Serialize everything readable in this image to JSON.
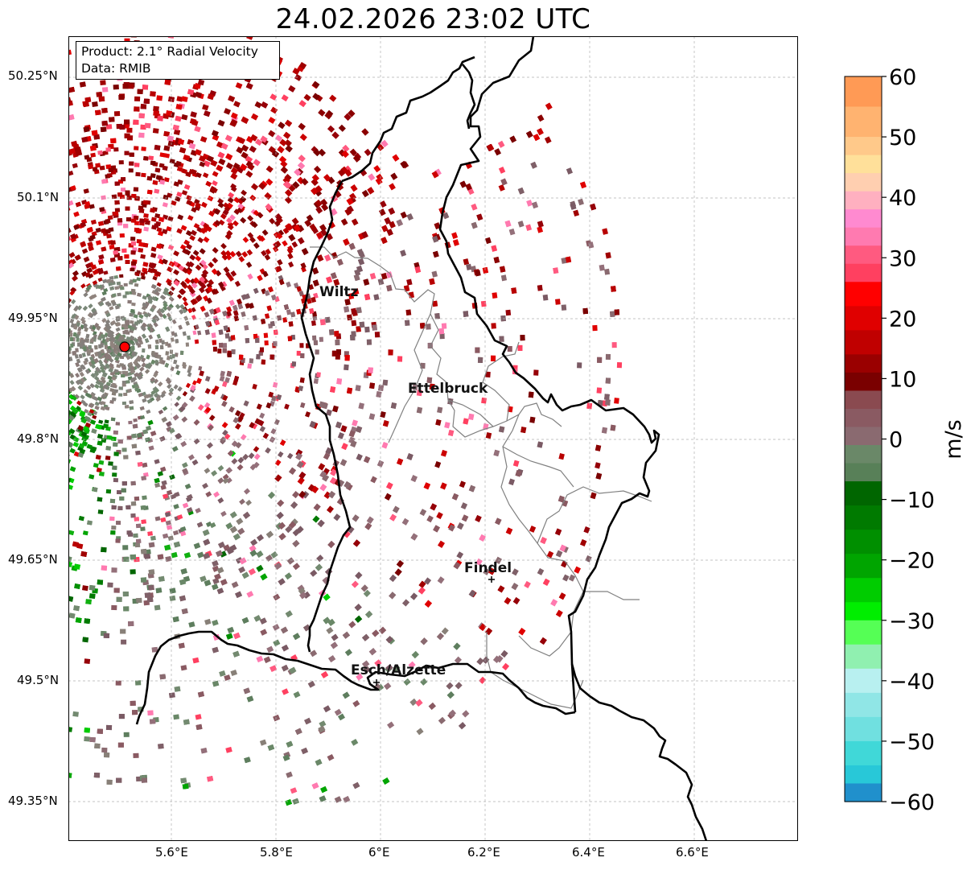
{
  "title": "24.02.2026 23:02 UTC",
  "info": {
    "product": "Product: 2.1° Radial Velocity",
    "data": "Data: RMIB"
  },
  "axes": {
    "lat_labels": [
      "50.25°N",
      "50.1°N",
      "49.95°N",
      "49.8°N",
      "49.65°N",
      "49.5°N",
      "49.35°N"
    ],
    "lon_labels": [
      "5.6°E",
      "5.8°E",
      "6°E",
      "6.2°E",
      "6.4°E",
      "6.6°E"
    ]
  },
  "cities": [
    {
      "name": "Wiltz"
    },
    {
      "name": "Ettelbruck"
    },
    {
      "name": "Findel"
    },
    {
      "name": "Esch/Alzette"
    }
  ],
  "colorbar": {
    "label": "m/s",
    "ticks": [
      "60",
      "50",
      "40",
      "30",
      "20",
      "10",
      "0",
      "−10",
      "−20",
      "−30",
      "−40",
      "−50",
      "−60"
    ]
  },
  "colors": {
    "border": "#000000",
    "district": "#808080",
    "radar_marker": "#ff0000",
    "grid": "#b0b0b0"
  }
}
